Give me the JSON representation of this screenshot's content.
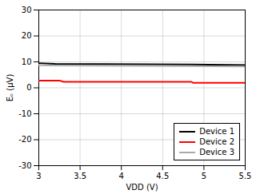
{
  "chart_data": {
    "type": "line",
    "xlabel": "VDD (V)",
    "ylabel": "Eₒ (μV)",
    "xlim": [
      3,
      5.5
    ],
    "ylim": [
      -30,
      30
    ],
    "xticks": [
      3,
      3.5,
      4,
      4.5,
      5,
      5.5
    ],
    "yticks": [
      -30,
      -20,
      -10,
      0,
      10,
      20,
      30
    ],
    "grid": true,
    "legend": "lower right",
    "series": [
      {
        "name": "Device 1",
        "color": "#000000",
        "x": [
          3.0,
          3.2,
          4.85,
          5.5
        ],
        "values": [
          9.5,
          9.2,
          9.0,
          8.8
        ]
      },
      {
        "name": "Device 2",
        "color": "#ff0000",
        "x": [
          3.0,
          3.25,
          3.3,
          4.85,
          4.87,
          5.5
        ],
        "values": [
          2.8,
          2.8,
          2.3,
          2.3,
          1.9,
          1.9
        ]
      },
      {
        "name": "Device 3",
        "color": "#aaaaaa",
        "x": [
          3.0,
          3.15,
          4.85,
          5.5
        ],
        "values": [
          8.8,
          8.6,
          8.4,
          8.2
        ]
      }
    ]
  }
}
